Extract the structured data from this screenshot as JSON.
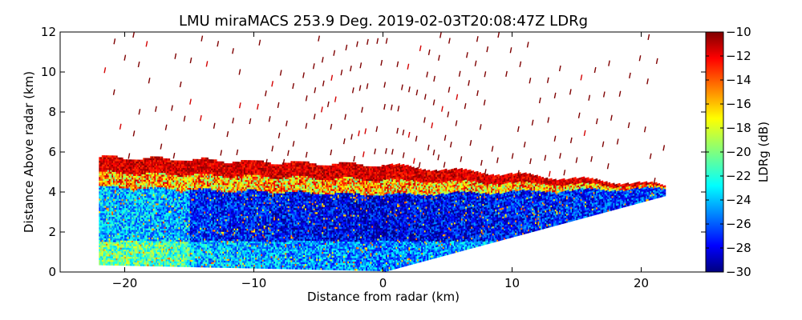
{
  "chart_data": {
    "type": "heatmap",
    "title": "LMU miraMACS 253.9 Deg. 2019-02-03T20:08:47Z  LDRg",
    "xlabel": "Distance from radar (km)",
    "ylabel": "Distance Above radar  (km)",
    "xlim": [
      -25,
      25
    ],
    "ylim": [
      0,
      12
    ],
    "xticks": [
      -20,
      -10,
      0,
      10,
      20
    ],
    "xtick_labels": [
      "−20",
      "−10",
      "0",
      "10",
      "20"
    ],
    "yticks": [
      0,
      2,
      4,
      6,
      8,
      10,
      12
    ],
    "ytick_labels": [
      "0",
      "2",
      "4",
      "6",
      "8",
      "10",
      "12"
    ],
    "colorbar": {
      "label": "LDRg (dB)",
      "colormap": "jet",
      "range": [
        -30,
        -10
      ],
      "ticks": [
        -10,
        -12,
        -14,
        -16,
        -18,
        -20,
        -22,
        -24,
        -26,
        -28,
        -30
      ],
      "tick_labels": [
        "−10",
        "−12",
        "−14",
        "−16",
        "−18",
        "−20",
        "−22",
        "−24",
        "−26",
        "−28",
        "−30"
      ]
    },
    "scan": {
      "x_extent_km": [
        -22,
        21.8
      ],
      "dense_layer_top_km": 5.3,
      "right_edge_top_km": 4.3,
      "right_edge_bottom_km": 3.8,
      "sparse_echo_top_km": 12
    }
  }
}
